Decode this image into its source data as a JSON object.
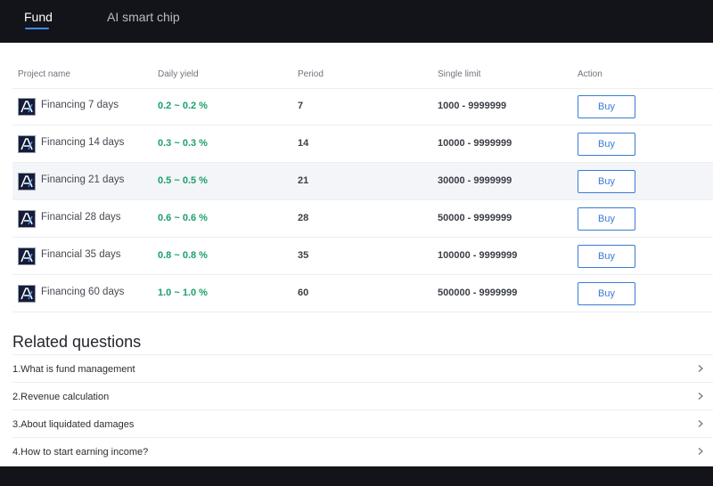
{
  "tabs": [
    {
      "label": "Fund",
      "active": true
    },
    {
      "label": "AI smart chip",
      "active": false
    }
  ],
  "table": {
    "headers": [
      "Project name",
      "Daily yield",
      "Period",
      "Single limit",
      "Action"
    ],
    "rows": [
      {
        "name": "Financing 7 days",
        "yield": "0.2 ~ 0.2 %",
        "period": "7",
        "limit": "1000 - 9999999",
        "action": "Buy"
      },
      {
        "name": "Financing 14 days",
        "yield": "0.3 ~ 0.3 %",
        "period": "14",
        "limit": "10000 - 9999999",
        "action": "Buy"
      },
      {
        "name": "Financing 21 days",
        "yield": "0.5 ~ 0.5 %",
        "period": "21",
        "limit": "30000 - 9999999",
        "action": "Buy"
      },
      {
        "name": "Financial 28 days",
        "yield": "0.6 ~ 0.6 %",
        "period": "28",
        "limit": "50000 - 9999999",
        "action": "Buy"
      },
      {
        "name": "Financial 35 days",
        "yield": "0.8 ~ 0.8 %",
        "period": "35",
        "limit": "100000 - 9999999",
        "action": "Buy"
      },
      {
        "name": "Financing 60 days",
        "yield": "1.0 ~ 1.0 %",
        "period": "60",
        "limit": "500000 - 9999999",
        "action": "Buy"
      }
    ]
  },
  "related": {
    "title": "Related questions",
    "items": [
      "1.What is fund management",
      "2.Revenue calculation",
      "3.About liquidated damages",
      "4.How to start earning income?"
    ]
  },
  "colors": {
    "yield_green": "#1aa06a",
    "accent_blue": "#3a7bd5",
    "topbar_bg": "#12141a"
  }
}
